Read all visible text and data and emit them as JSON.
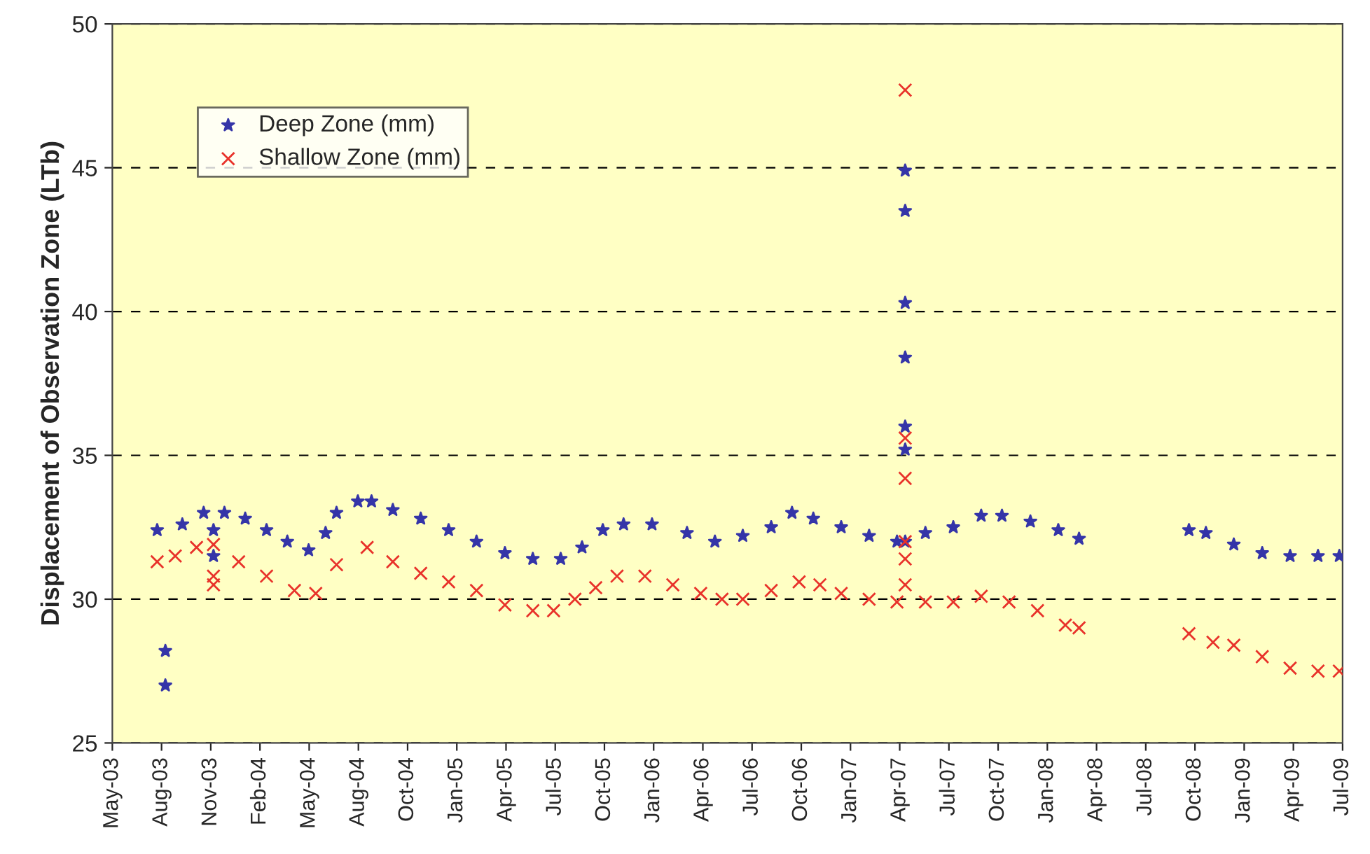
{
  "chart_data": {
    "type": "scatter",
    "ylabel": "Displacement of Observation Zone (LTb)",
    "series": [
      {
        "name": "Deep Zone (mm)",
        "color": "#3535a8",
        "marker": "star",
        "x": [
          "2003-07-30",
          "2003-08-14",
          "2003-08-14",
          "2003-09-14",
          "2003-10-23",
          "2003-11-10",
          "2003-11-10",
          "2003-11-30",
          "2004-01-07",
          "2004-02-15",
          "2004-03-24",
          "2004-05-02",
          "2004-06-02",
          "2004-06-22",
          "2004-07-31",
          "2004-08-25",
          "2004-10-03",
          "2004-11-23",
          "2005-01-13",
          "2005-03-05",
          "2005-04-26",
          "2005-06-16",
          "2005-08-06",
          "2005-09-14",
          "2005-10-22",
          "2005-11-29",
          "2006-01-20",
          "2006-03-25",
          "2006-05-15",
          "2006-07-05",
          "2006-08-26",
          "2006-10-03",
          "2006-11-11",
          "2007-01-01",
          "2007-02-21",
          "2007-04-13",
          "2007-04-28",
          "2007-04-28",
          "2007-04-28",
          "2007-04-28",
          "2007-04-28",
          "2007-04-28",
          "2007-04-28",
          "2007-06-04",
          "2007-07-25",
          "2007-09-14",
          "2007-10-22",
          "2007-12-13",
          "2008-02-02",
          "2008-03-11",
          "2008-09-28",
          "2008-10-29",
          "2008-12-19",
          "2009-02-09",
          "2009-04-01",
          "2009-05-22",
          "2009-06-30"
        ],
        "values": [
          32.4,
          28.2,
          27.0,
          32.6,
          33.0,
          32.4,
          31.5,
          33.0,
          32.8,
          32.4,
          32.0,
          31.7,
          32.3,
          33.0,
          33.4,
          33.4,
          33.1,
          32.8,
          32.4,
          32.0,
          31.6,
          31.4,
          31.4,
          31.8,
          32.4,
          32.6,
          32.6,
          32.3,
          32.0,
          32.2,
          32.5,
          33.0,
          32.8,
          32.5,
          32.2,
          32.0,
          44.9,
          43.5,
          40.3,
          38.4,
          36.0,
          35.2,
          32.0,
          32.3,
          32.5,
          32.9,
          32.9,
          32.7,
          32.4,
          32.1,
          32.4,
          32.3,
          31.9,
          31.6,
          31.5,
          31.5,
          31.5
        ]
      },
      {
        "name": "Shallow Zone (mm)",
        "color": "#e8322a",
        "marker": "cross",
        "x": [
          "2003-07-30",
          "2003-09-01",
          "2003-10-10",
          "2003-11-10",
          "2003-11-10",
          "2003-11-10",
          "2003-12-26",
          "2004-02-15",
          "2004-04-06",
          "2004-05-15",
          "2004-06-22",
          "2004-08-17",
          "2004-10-03",
          "2004-11-23",
          "2005-01-13",
          "2005-03-05",
          "2005-04-26",
          "2005-06-16",
          "2005-07-24",
          "2005-09-01",
          "2005-10-09",
          "2005-11-17",
          "2006-01-07",
          "2006-02-27",
          "2006-04-19",
          "2006-05-28",
          "2006-07-05",
          "2006-08-26",
          "2006-10-16",
          "2006-11-23",
          "2007-01-01",
          "2007-02-21",
          "2007-04-13",
          "2007-04-28",
          "2007-04-28",
          "2007-04-28",
          "2007-04-28",
          "2007-04-28",
          "2007-04-28",
          "2007-06-04",
          "2007-07-25",
          "2007-09-14",
          "2007-11-04",
          "2007-12-26",
          "2008-02-15",
          "2008-03-11",
          "2008-09-28",
          "2008-11-11",
          "2008-12-19",
          "2009-02-09",
          "2009-04-01",
          "2009-05-22",
          "2009-06-30"
        ],
        "values": [
          31.3,
          31.5,
          31.8,
          31.9,
          30.8,
          30.5,
          31.3,
          30.8,
          30.3,
          30.2,
          31.2,
          31.8,
          31.3,
          30.9,
          30.6,
          30.3,
          29.8,
          29.6,
          29.6,
          30.0,
          30.4,
          30.8,
          30.8,
          30.5,
          30.2,
          30.0,
          30.0,
          30.3,
          30.6,
          30.5,
          30.2,
          30.0,
          29.9,
          47.7,
          35.6,
          34.2,
          32.0,
          31.4,
          30.5,
          29.9,
          29.9,
          30.1,
          29.9,
          29.6,
          29.1,
          29.0,
          28.8,
          28.5,
          28.4,
          28.0,
          27.6,
          27.5,
          27.5
        ]
      }
    ],
    "xlim": [
      "2003-05-09",
      "2009-07-06"
    ],
    "xticks": [
      {
        "value": "2003-05-09",
        "label": "May-03"
      },
      {
        "value": "2003-08-07",
        "label": "Aug-03"
      },
      {
        "value": "2003-11-05",
        "label": "Nov-03"
      },
      {
        "value": "2004-02-03",
        "label": "Feb-04"
      },
      {
        "value": "2004-05-03",
        "label": "May-04"
      },
      {
        "value": "2004-08-01",
        "label": "Aug-04"
      },
      {
        "value": "2004-10-30",
        "label": "Oct-04"
      },
      {
        "value": "2005-01-28",
        "label": "Jan-05"
      },
      {
        "value": "2005-04-28",
        "label": "Apr-05"
      },
      {
        "value": "2005-07-27",
        "label": "Jul-05"
      },
      {
        "value": "2005-10-25",
        "label": "Oct-05"
      },
      {
        "value": "2006-01-23",
        "label": "Jan-06"
      },
      {
        "value": "2006-04-23",
        "label": "Apr-06"
      },
      {
        "value": "2006-07-22",
        "label": "Jul-06"
      },
      {
        "value": "2006-10-20",
        "label": "Oct-06"
      },
      {
        "value": "2007-01-18",
        "label": "Jan-07"
      },
      {
        "value": "2007-04-18",
        "label": "Apr-07"
      },
      {
        "value": "2007-07-17",
        "label": "Jul-07"
      },
      {
        "value": "2007-10-15",
        "label": "Oct-07"
      },
      {
        "value": "2008-01-13",
        "label": "Jan-08"
      },
      {
        "value": "2008-04-12",
        "label": "Apr-08"
      },
      {
        "value": "2008-07-11",
        "label": "Jul-08"
      },
      {
        "value": "2008-10-09",
        "label": "Oct-08"
      },
      {
        "value": "2009-01-07",
        "label": "Jan-09"
      },
      {
        "value": "2009-04-07",
        "label": "Apr-09"
      },
      {
        "value": "2009-07-06",
        "label": "Jul-09"
      }
    ],
    "ylim": [
      25,
      50
    ],
    "yticks": [
      25,
      30,
      35,
      40,
      45,
      50
    ],
    "grid": "y",
    "legend": "top left"
  }
}
